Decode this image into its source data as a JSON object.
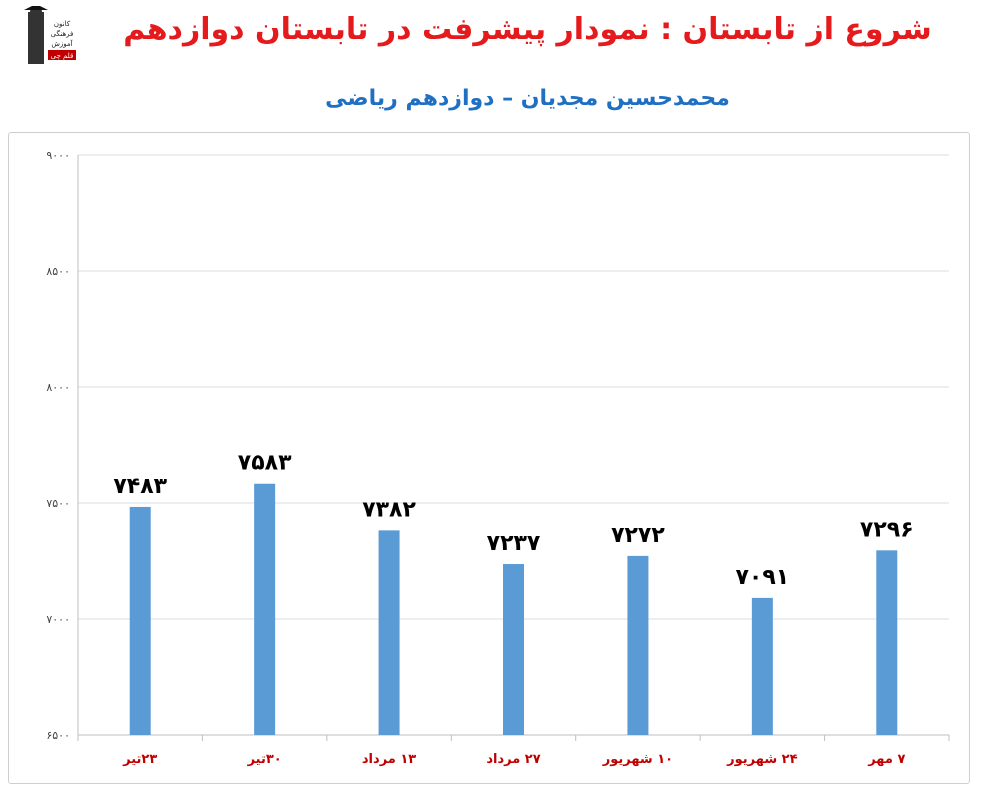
{
  "header": {
    "title": "شروع از تابستان : نمودار پیشرفت در تابستان دوازدهم",
    "subtitle": "محمدحسین مجدیان – دوازدهم ریاضی",
    "logo_text": [
      "کانون",
      "فرهنگی",
      "آموزش",
      "قلم چی"
    ]
  },
  "colors": {
    "title": "#e41a1c",
    "subtitle": "#1f6fc2",
    "bar": "#5b9bd5",
    "category_label": "#c00000",
    "value_label": "#000000",
    "grid": "#d9dee6"
  },
  "chart_data": {
    "type": "bar",
    "categories": [
      "۲۳تیر",
      "۳۰تیر",
      "۱۳ مرداد",
      "۲۷ مرداد",
      "۱۰ شهریور",
      "۲۴ شهریور",
      "۷ مهر"
    ],
    "values": [
      7483,
      7583,
      7382,
      7237,
      7272,
      7091,
      7296
    ],
    "value_labels": [
      "۷۴۸۳",
      "۷۵۸۳",
      "۷۳۸۲",
      "۷۲۳۷",
      "۷۲۷۲",
      "۷۰۹۱",
      "۷۲۹۶"
    ],
    "ylim": [
      6500,
      9000
    ],
    "yticks": [
      6500,
      7000,
      7500,
      8000,
      8500,
      9000
    ],
    "ytick_labels": [
      "۶۵۰۰",
      "۷۰۰۰",
      "۷۵۰۰",
      "۸۰۰۰",
      "۸۵۰۰",
      "۹۰۰۰"
    ],
    "grid": true,
    "legend": "none"
  }
}
